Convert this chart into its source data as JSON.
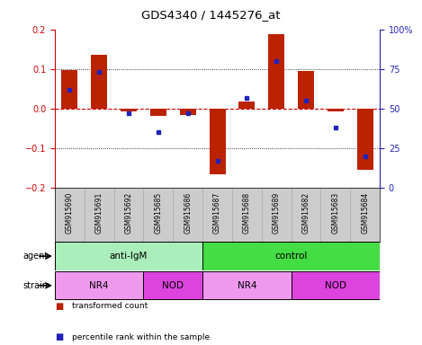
{
  "title": "GDS4340 / 1445276_at",
  "samples": [
    "GSM915690",
    "GSM915691",
    "GSM915692",
    "GSM915685",
    "GSM915686",
    "GSM915687",
    "GSM915688",
    "GSM915689",
    "GSM915682",
    "GSM915683",
    "GSM915684"
  ],
  "transformed_count": [
    0.097,
    0.135,
    -0.008,
    -0.018,
    -0.015,
    -0.165,
    0.018,
    0.188,
    0.095,
    -0.008,
    -0.155
  ],
  "percentile_rank": [
    62,
    73,
    47,
    35,
    47,
    17,
    57,
    80,
    55,
    38,
    20
  ],
  "ylim_left": [
    -0.2,
    0.2
  ],
  "ylim_right": [
    0,
    100
  ],
  "yticks_left": [
    -0.2,
    -0.1,
    0.0,
    0.1,
    0.2
  ],
  "yticks_right": [
    0,
    25,
    50,
    75,
    100
  ],
  "ytick_right_labels": [
    "0",
    "25",
    "50",
    "75",
    "100%"
  ],
  "bar_color": "#bb2200",
  "dot_color": "#2222bb",
  "zero_line_color": "#cc0000",
  "dot_line_color": "#aaaacc",
  "agent_groups": [
    {
      "label": "anti-IgM",
      "start": 0,
      "end": 5,
      "color": "#aaeebb"
    },
    {
      "label": "control",
      "start": 5,
      "end": 11,
      "color": "#44dd44"
    }
  ],
  "strain_groups": [
    {
      "label": "NR4",
      "start": 0,
      "end": 3,
      "color": "#ee99ee"
    },
    {
      "label": "NOD",
      "start": 3,
      "end": 5,
      "color": "#dd44dd"
    },
    {
      "label": "NR4",
      "start": 5,
      "end": 8,
      "color": "#ee99ee"
    },
    {
      "label": "NOD",
      "start": 8,
      "end": 11,
      "color": "#dd44dd"
    }
  ],
  "legend_bar_color": "#bb2200",
  "legend_dot_color": "#2222bb",
  "legend_bar_label": "transformed count",
  "legend_dot_label": "percentile rank within the sample",
  "bg_labels": "#cccccc",
  "left_tick_color": "#cc0000",
  "right_tick_color": "#2222bb"
}
